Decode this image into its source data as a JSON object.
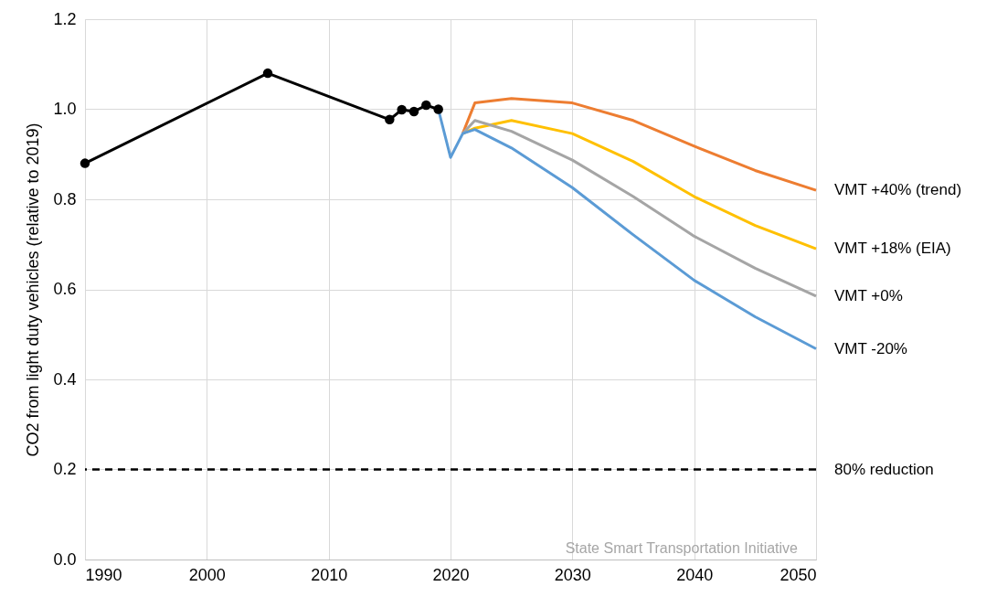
{
  "chart_data": {
    "type": "line",
    "ylabel": "CO2 from light duty vehicles (relative to 2019)",
    "xlim": [
      1990,
      2050
    ],
    "xticks": [
      1990,
      2000,
      2010,
      2020,
      2030,
      2040,
      2050
    ],
    "ylim": [
      0,
      1.2
    ],
    "yticks": [
      {
        "value": 0,
        "label": "0.0"
      },
      {
        "value": 0.2,
        "label": "0.2"
      },
      {
        "value": 0.4,
        "label": "0.4"
      },
      {
        "value": 0.6,
        "label": "0.6"
      },
      {
        "value": 0.8,
        "label": "0.8"
      },
      {
        "value": 1.0,
        "label": "1.0"
      },
      {
        "value": 1.2,
        "label": "1.2"
      }
    ],
    "grid": true,
    "line_style": "solid",
    "series": [
      {
        "name": "VMT +40% (trend)",
        "color": "#ed7d31",
        "marker": "none",
        "x": [
          2021,
          2022,
          2025,
          2030,
          2035,
          2040,
          2045,
          2050
        ],
        "values": [
          0.946,
          1.014,
          1.024,
          1.014,
          0.975,
          0.918,
          0.864,
          0.82
        ]
      },
      {
        "name": "VMT +18% (EIA)",
        "color": "#ffc000",
        "marker": "none",
        "x": [
          2021,
          2022,
          2025,
          2030,
          2035,
          2040,
          2045,
          2050
        ],
        "values": [
          0.946,
          0.958,
          0.975,
          0.946,
          0.884,
          0.806,
          0.742,
          0.69
        ]
      },
      {
        "name": "VMT +0%",
        "color": "#a5a5a5",
        "marker": "none",
        "x": [
          2021,
          2022,
          2025,
          2030,
          2035,
          2040,
          2045,
          2050
        ],
        "values": [
          0.946,
          0.975,
          0.951,
          0.887,
          0.806,
          0.718,
          0.647,
          0.585
        ]
      },
      {
        "name": "VMT -20%",
        "color": "#5b9bd5",
        "marker": "none",
        "x": [
          2019,
          2020,
          2021,
          2022,
          2025,
          2030,
          2035,
          2040,
          2045,
          2050
        ],
        "values": [
          1.0,
          0.893,
          0.946,
          0.955,
          0.914,
          0.826,
          0.721,
          0.62,
          0.539,
          0.468
        ]
      },
      {
        "color": "#000000",
        "marker": "circle",
        "x": [
          1990,
          2005,
          2015,
          2016,
          2017,
          2018,
          2019
        ],
        "values": [
          0.88,
          1.08,
          0.977,
          0.999,
          0.995,
          1.009,
          1.0
        ]
      }
    ],
    "ref_lines": [
      {
        "axis": "y",
        "value": 0.2,
        "label": "80% reduction",
        "color": "#000000",
        "line_style": "dashed"
      }
    ],
    "annotations": [
      "State Smart Transportation Initiative"
    ]
  }
}
